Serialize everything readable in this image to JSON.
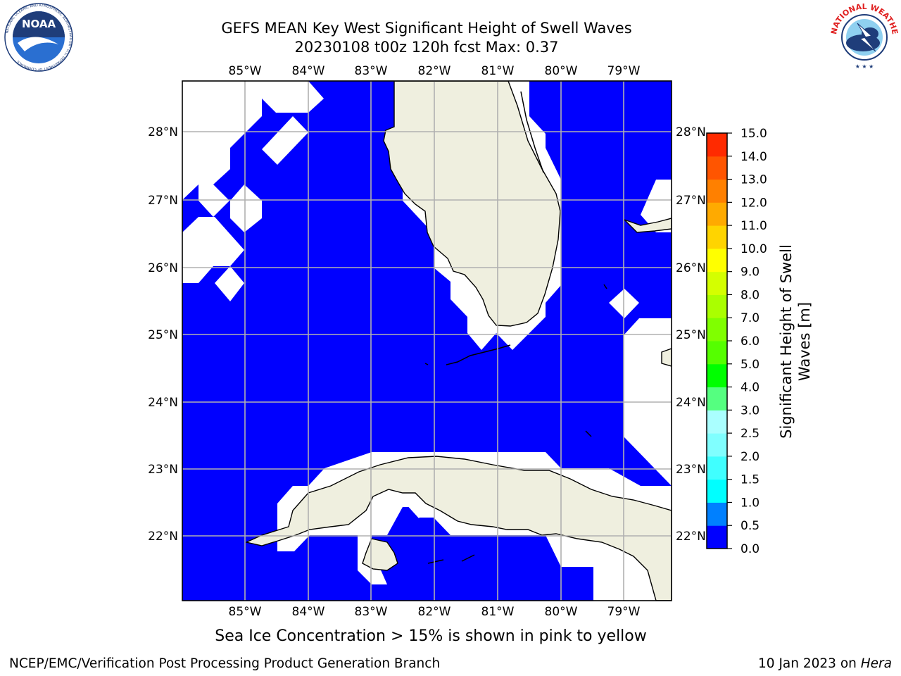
{
  "header": {
    "title_line1": "GEFS MEAN Key West Significant Height of Swell Waves",
    "title_line2": "20230108 t00z 120h fcst   Max: 0.37"
  },
  "logos": {
    "noaa_text": "NOAA",
    "noaa_ring_text": "NATIONAL OCEANIC AND ATMOSPHERIC ADMINISTRATION · U.S. DEPARTMENT OF COMMERCE",
    "nws_ring_text": "NATIONAL WEATHER SERVICE"
  },
  "map": {
    "lon_labels": [
      "85°W",
      "84°W",
      "83°W",
      "82°W",
      "81°W",
      "80°W",
      "79°W"
    ],
    "lat_labels": [
      "28°N",
      "27°N",
      "26°N",
      "25°N",
      "24°N",
      "23°N",
      "22°N"
    ],
    "ocean_color": "#0000ff",
    "land_color": "#efefdf",
    "grid_color": "#b0b0b0"
  },
  "colorbar": {
    "label_line1": "Significant Height of Swell",
    "label_line2": "Waves [m]",
    "ticks": [
      "0.0",
      "0.5",
      "1.0",
      "1.5",
      "2.0",
      "2.5",
      "3.0",
      "4.0",
      "5.0",
      "6.0",
      "7.0",
      "8.0",
      "9.0",
      "10.0",
      "11.0",
      "12.0",
      "13.0",
      "14.0",
      "15.0"
    ],
    "colors": [
      "#0000ff",
      "#0080ff",
      "#00ffff",
      "#40ffff",
      "#80ffff",
      "#aaffff",
      "#55ff80",
      "#00ff00",
      "#55ff00",
      "#80ff00",
      "#aaff00",
      "#d4ff00",
      "#ffff00",
      "#ffd400",
      "#ffaa00",
      "#ff8000",
      "#ff5500",
      "#ff2a00"
    ]
  },
  "ice_note": "Sea Ice Concentration > 15% is shown in pink to yellow",
  "footer": {
    "left": "NCEP/EMC/Verification Post Processing Product Generation Branch",
    "right_date": "10 Jan 2023 on ",
    "right_host": "Hera"
  }
}
